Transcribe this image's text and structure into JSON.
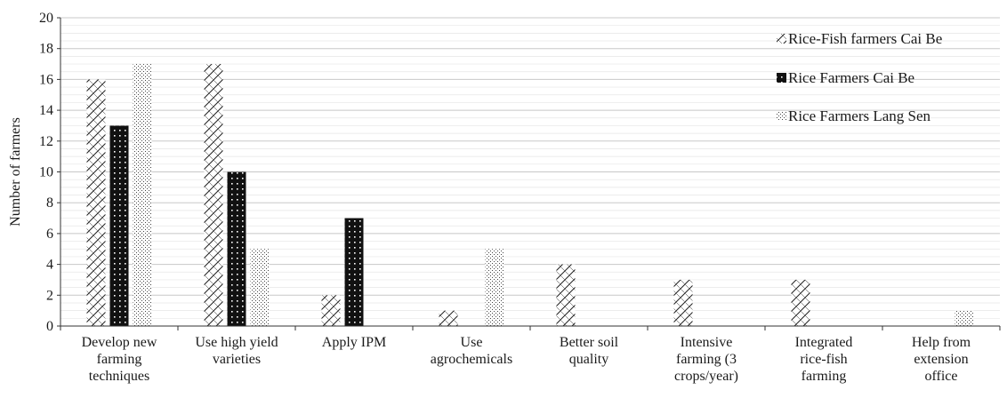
{
  "chart_data": {
    "type": "bar",
    "title": "",
    "xlabel": "",
    "ylabel": "Number of farmers",
    "ylim": [
      0,
      20
    ],
    "yticks": [
      0,
      2,
      4,
      6,
      8,
      10,
      12,
      14,
      16,
      18,
      20
    ],
    "grid": true,
    "legend_position": "top-right",
    "categories": [
      [
        "Develop new",
        "farming",
        "techniques"
      ],
      [
        "Use high yield",
        "varieties"
      ],
      [
        "Apply IPM"
      ],
      [
        "Use",
        "agrochemicals"
      ],
      [
        "Better soil",
        "quality"
      ],
      [
        "Intensive",
        "farming (3",
        "crops/year)"
      ],
      [
        "Integrated",
        "rice-fish",
        "farming"
      ],
      [
        "Help from",
        "extension",
        "office"
      ]
    ],
    "series": [
      {
        "name": "Rice-Fish farmers Cai Be",
        "pattern": "crosshatch",
        "values": [
          16,
          17,
          2,
          1,
          4,
          3,
          3,
          0
        ]
      },
      {
        "name": "Rice Farmers Cai Be",
        "pattern": "black-dotted",
        "values": [
          13,
          10,
          7,
          0,
          0,
          0,
          0,
          0
        ]
      },
      {
        "name": "Rice Farmers Lang Sen",
        "pattern": "fine-dotted",
        "values": [
          17,
          5,
          0,
          5,
          0,
          0,
          0,
          1
        ]
      }
    ]
  }
}
